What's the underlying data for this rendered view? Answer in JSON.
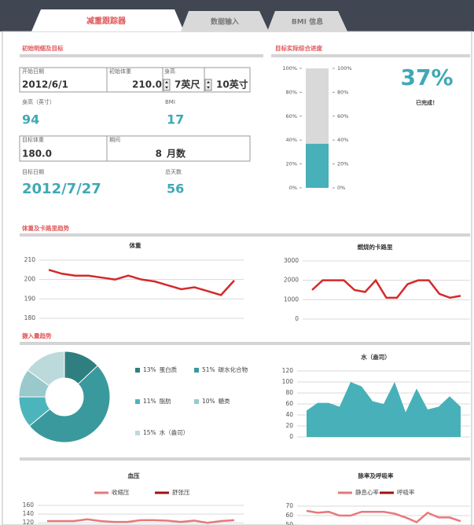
{
  "tabs": [
    "减重跟踪器",
    "数据输入",
    "BMI 信息"
  ],
  "sections": [
    "初始明细及目标",
    "目标实际综合进度",
    "体重及卡路里趋势",
    "摄入量趋势"
  ],
  "details": {
    "start_date": {
      "label": "开始日期",
      "value": "2012/6/1"
    },
    "initial_weight": {
      "label": "初始体重",
      "value": "210.0"
    },
    "height": {
      "label": "身高",
      "feet": "7英尺",
      "inches": "10英寸"
    },
    "height_inches": {
      "label": "身高（英寸）",
      "value": 94
    },
    "bmi": {
      "label": "BMI",
      "value": 17
    },
    "target_weight": {
      "label": "目标体重",
      "value": "180.0"
    },
    "period": {
      "label": "期间",
      "value": 8,
      "unit": "月数"
    },
    "target_date": {
      "label": "目标日期",
      "value": "2012/7/27"
    },
    "total_days": {
      "label": "总天数",
      "value": 56
    }
  },
  "chart_data": [
    {
      "type": "progress",
      "completed": 37,
      "completed_label": "37%",
      "remaining": 63,
      "status": "已完成！",
      "colors": {
        "completed": "#48b0b8",
        "remaining": "#d9d9d9"
      },
      "ylim": [
        0,
        100
      ],
      "yticks": [
        {
          "value": 0,
          "label": "0%"
        },
        {
          "value": 20,
          "label": "20%"
        },
        {
          "value": 40,
          "label": "40%"
        },
        {
          "value": 60,
          "label": "60%"
        },
        {
          "value": 80,
          "label": "80%"
        },
        {
          "value": 100,
          "label": "100%"
        }
      ]
    },
    {
      "type": "line",
      "title": "体重",
      "ylim": [
        180,
        210
      ],
      "yticks": [
        180,
        190,
        200,
        210
      ],
      "grid": true,
      "series": [
        {
          "color": "#d42a2a",
          "values": [
            205,
            203,
            202,
            202,
            201,
            200,
            202,
            200,
            199,
            197,
            195,
            196,
            194,
            192,
            199.5
          ]
        }
      ]
    },
    {
      "type": "line",
      "title": "燃烧的卡路里",
      "ylim": [
        0,
        3000
      ],
      "yticks": [
        0,
        1000,
        2000,
        3000
      ],
      "grid": true,
      "series": [
        {
          "color": "#d42a2a",
          "values": [
            1500,
            2000,
            2000,
            2000,
            1500,
            1400,
            2000,
            1100,
            1100,
            1800,
            2000,
            2000,
            1300,
            1100,
            1200
          ]
        }
      ]
    },
    {
      "type": "donut",
      "categories": [
        "蛋白质",
        "碳水化合物",
        "脂肪",
        "糖类",
        "水（盎司）"
      ],
      "values": [
        13,
        51,
        11,
        10,
        15
      ],
      "value_labels": [
        "13%",
        "51%",
        "11%",
        "10%",
        "15%"
      ],
      "colors": [
        "#2f7f80",
        "#3a999c",
        "#4cb5bc",
        "#9ac9cc",
        "#bcd9dc"
      ]
    },
    {
      "type": "area",
      "title": "水（盎司）",
      "ylim": [
        0,
        120
      ],
      "yticks": [
        0,
        20,
        40,
        60,
        80,
        100,
        120
      ],
      "grid": true,
      "series": [
        {
          "color": "#48b0b8",
          "values": [
            48,
            62,
            62,
            55,
            100,
            92,
            65,
            60,
            100,
            45,
            88,
            50,
            55,
            74,
            55
          ]
        }
      ]
    },
    {
      "type": "line",
      "title": "血压",
      "ylim": [
        115,
        160
      ],
      "yticks": [
        120,
        140,
        160
      ],
      "grid": true,
      "legend": true,
      "series": [
        {
          "name": "收缩压",
          "color": "#e8787a",
          "values": [
            124,
            124,
            124,
            128,
            124,
            122,
            122,
            126,
            126,
            125,
            122,
            125,
            120,
            124,
            126
          ]
        },
        {
          "name": "舒张压",
          "color": "#a01010",
          "values": []
        }
      ]
    },
    {
      "type": "line",
      "title": "脉率及呼吸率",
      "ylim": [
        50,
        70
      ],
      "yticks": [
        50,
        60,
        70
      ],
      "grid": true,
      "legend": true,
      "series": [
        {
          "name": "静息心率",
          "color": "#e8787a",
          "values": [
            65,
            63,
            64,
            60,
            60,
            64,
            64,
            64,
            62,
            58,
            53,
            63,
            58,
            58,
            54
          ]
        },
        {
          "name": "呼吸率",
          "color": "#a01010",
          "values": []
        }
      ]
    }
  ]
}
